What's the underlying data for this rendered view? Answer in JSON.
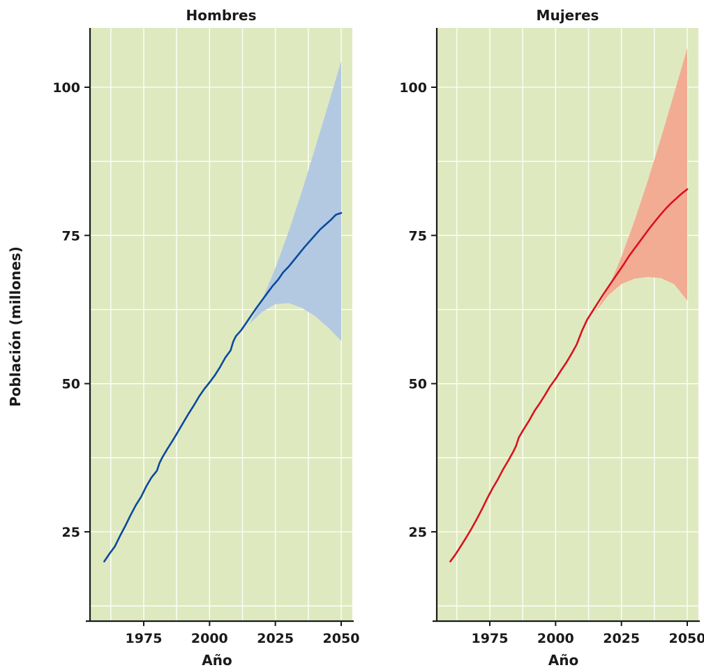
{
  "figure": {
    "ylabel": "Población (millones)"
  },
  "chart_data": [
    {
      "type": "line",
      "title": "Hombres",
      "xlabel": "Año",
      "ylabel": "Población (millones)",
      "xlim": [
        1955,
        2052
      ],
      "ylim": [
        12,
        110
      ],
      "x_ticks": [
        1975,
        2000,
        2025,
        2050
      ],
      "y_ticks": [
        25,
        50,
        75,
        100
      ],
      "grid": true,
      "colors": {
        "background": "#dfe9c0",
        "line": "#0a4a9c",
        "band": "#b3c9e2"
      },
      "series": [
        {
          "x": [
            1960,
            1962,
            1964,
            1966,
            1968,
            1970,
            1972,
            1974,
            1976,
            1978,
            1980,
            1981,
            1982,
            1984,
            1986,
            1988,
            1990,
            1992,
            1994,
            1996,
            1998,
            2000,
            2002,
            2004,
            2006,
            2008,
            2009,
            2010,
            2012,
            2014,
            2016,
            2018,
            2020,
            2022,
            2024,
            2026,
            2028,
            2030,
            2032,
            2034,
            2036,
            2038,
            2040,
            2042,
            2044,
            2046,
            2048,
            2050
          ],
          "values": [
            20.0,
            21.3,
            22.5,
            24.3,
            26.0,
            27.8,
            29.5,
            30.9,
            32.7,
            34.2,
            35.3,
            36.6,
            37.5,
            39.0,
            40.4,
            41.9,
            43.4,
            44.9,
            46.3,
            47.8,
            49.1,
            50.2,
            51.4,
            52.8,
            54.4,
            55.6,
            57.1,
            58.0,
            59.0,
            60.3,
            61.6,
            62.9,
            64.1,
            65.3,
            66.5,
            67.5,
            68.8,
            69.7,
            70.8,
            71.9,
            73.0,
            74.0,
            75.0,
            76.0,
            76.8,
            77.6,
            78.5,
            78.8
          ]
        }
      ],
      "uncertainty_band": {
        "x": [
          2015,
          2020,
          2025,
          2030,
          2035,
          2040,
          2045,
          2050
        ],
        "upper": [
          60.0,
          64.2,
          69.5,
          75.6,
          82.3,
          89.6,
          96.9,
          104.4
        ],
        "lower": [
          60.0,
          62.1,
          63.4,
          63.6,
          62.8,
          61.4,
          59.5,
          57.2
        ]
      }
    },
    {
      "type": "line",
      "title": "Mujeres",
      "xlabel": "Año",
      "ylabel": "Población (millones)",
      "xlim": [
        1955,
        2052
      ],
      "ylim": [
        12,
        110
      ],
      "x_ticks": [
        1975,
        2000,
        2025,
        2050
      ],
      "y_ticks": [
        25,
        50,
        75,
        100
      ],
      "grid": true,
      "colors": {
        "background": "#dfe9c0",
        "line": "#d8121e",
        "band": "#f2ac93"
      },
      "series": [
        {
          "x": [
            1960,
            1962,
            1964,
            1966,
            1968,
            1970,
            1972,
            1974,
            1976,
            1978,
            1980,
            1982,
            1984,
            1985,
            1986,
            1988,
            1990,
            1992,
            1994,
            1996,
            1998,
            2000,
            2002,
            2004,
            2006,
            2008,
            2010,
            2012,
            2014,
            2016,
            2018,
            2020,
            2022,
            2024,
            2026,
            2028,
            2030,
            2032,
            2034,
            2036,
            2038,
            2040,
            2042,
            2044,
            2046,
            2048,
            2050
          ],
          "values": [
            20.0,
            21.2,
            22.6,
            24.0,
            25.5,
            27.1,
            28.8,
            30.6,
            32.3,
            33.8,
            35.5,
            37.0,
            38.6,
            39.5,
            40.9,
            42.4,
            43.8,
            45.4,
            46.7,
            48.1,
            49.6,
            50.8,
            52.2,
            53.5,
            55.0,
            56.6,
            58.9,
            60.8,
            62.2,
            63.6,
            65.0,
            66.3,
            67.6,
            68.9,
            70.2,
            71.6,
            72.8,
            74.0,
            75.2,
            76.4,
            77.5,
            78.6,
            79.6,
            80.5,
            81.3,
            82.1,
            82.8
          ]
        }
      ],
      "uncertainty_band": {
        "x": [
          2015,
          2020,
          2025,
          2030,
          2035,
          2040,
          2045,
          2050
        ],
        "upper": [
          62.0,
          66.1,
          71.4,
          77.5,
          84.2,
          91.4,
          98.9,
          106.6
        ],
        "lower": [
          62.0,
          64.9,
          66.8,
          67.7,
          68.0,
          67.8,
          66.8,
          64.0
        ]
      }
    }
  ]
}
